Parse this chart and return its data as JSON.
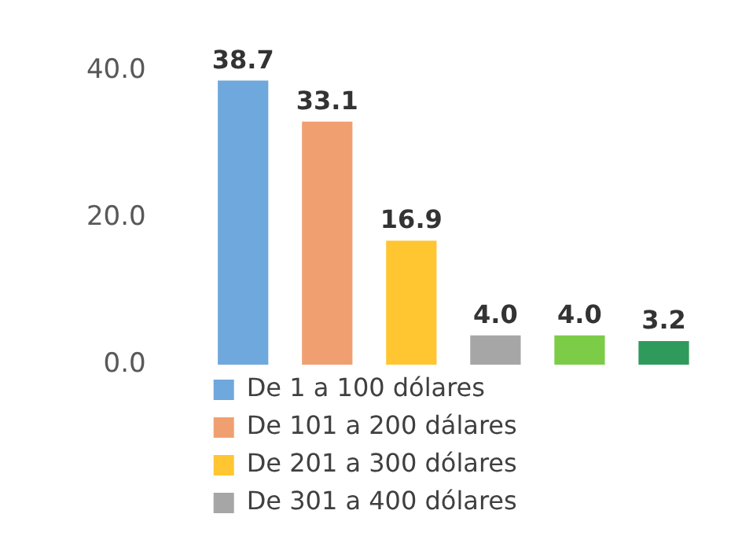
{
  "chart_data": {
    "type": "bar",
    "stacked": true,
    "categories": [
      null,
      null,
      null,
      null,
      null,
      null
    ],
    "series": [
      {
        "name": "De 1 a 100 dólares",
        "color": "#6fa8dc",
        "values": [
          38.7,
          null,
          null,
          null,
          null,
          null
        ],
        "value_labels": [
          "38.7",
          null,
          null,
          null,
          null,
          null
        ]
      },
      {
        "name": "De 101 a 200 dálares",
        "color": "#f0a070",
        "values": [
          null,
          33.1,
          null,
          null,
          null,
          null
        ],
        "value_labels": [
          null,
          "33.1",
          null,
          null,
          null,
          null
        ]
      },
      {
        "name": "De 201 a 300 dólares",
        "color": "#ffc632",
        "values": [
          null,
          null,
          16.9,
          null,
          null,
          null
        ],
        "value_labels": [
          null,
          null,
          "16.9",
          null,
          null,
          null
        ]
      },
      {
        "name": "De 301 a 400 dólares",
        "color": "#a6a6a6",
        "values": [
          null,
          null,
          null,
          4.0,
          null,
          null
        ],
        "value_labels": [
          null,
          null,
          null,
          "4.0",
          null,
          null
        ]
      },
      {
        "color": "#7ccc48",
        "values": [
          null,
          null,
          null,
          null,
          4.0,
          null
        ],
        "value_labels": [
          null,
          null,
          null,
          null,
          "4.0",
          null
        ]
      },
      {
        "color": "#2e9a5c",
        "values": [
          null,
          null,
          null,
          null,
          null,
          3.2
        ],
        "value_labels": [
          null,
          null,
          null,
          null,
          null,
          "3.2"
        ]
      }
    ],
    "ylim": [
      0,
      40
    ],
    "yticks": [
      {
        "value": 0,
        "label": "0.0"
      },
      {
        "value": 20,
        "label": "20.0"
      },
      {
        "value": 40,
        "label": "40.0"
      }
    ],
    "grid": false,
    "legend": "bottom"
  }
}
